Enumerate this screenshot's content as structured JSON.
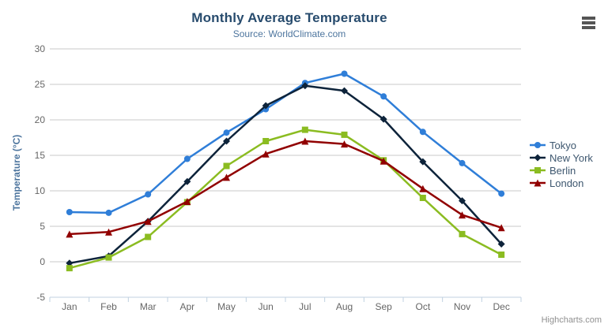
{
  "chart_data": {
    "type": "line",
    "title": "Monthly Average Temperature",
    "subtitle": "Source: WorldClimate.com",
    "categories": [
      "Jan",
      "Feb",
      "Mar",
      "Apr",
      "May",
      "Jun",
      "Jul",
      "Aug",
      "Sep",
      "Oct",
      "Nov",
      "Dec"
    ],
    "series": [
      {
        "name": "Tokyo",
        "color": "#2f7ed8",
        "marker": "circle",
        "values": [
          7.0,
          6.9,
          9.5,
          14.5,
          18.2,
          21.5,
          25.2,
          26.5,
          23.3,
          18.3,
          13.9,
          9.6
        ]
      },
      {
        "name": "New York",
        "color": "#0d233a",
        "marker": "diamond",
        "values": [
          -0.2,
          0.8,
          5.7,
          11.3,
          17.0,
          22.0,
          24.8,
          24.1,
          20.1,
          14.1,
          8.6,
          2.5
        ]
      },
      {
        "name": "Berlin",
        "color": "#8bbc21",
        "marker": "square",
        "values": [
          -0.9,
          0.6,
          3.5,
          8.4,
          13.5,
          17.0,
          18.6,
          17.9,
          14.3,
          9.0,
          3.9,
          1.0
        ]
      },
      {
        "name": "London",
        "color": "#910000",
        "marker": "triangle",
        "values": [
          3.9,
          4.2,
          5.7,
          8.5,
          11.9,
          15.2,
          17.0,
          16.6,
          14.2,
          10.3,
          6.6,
          4.8
        ]
      }
    ],
    "xlabel": "",
    "ylabel": "Temperature (°C)",
    "ylim": [
      -5,
      30
    ],
    "yticks": [
      -5,
      0,
      5,
      10,
      15,
      20,
      25,
      30
    ],
    "grid": true,
    "legend_position": "right",
    "colors": {
      "grid_line": "#C9C9C9",
      "x_axis_line": "#C0D0E0",
      "tick_label": "#666666",
      "title": "#274b6d",
      "subtitle": "#4d759e",
      "axis_title": "#4d759e",
      "legend_text": "#3E576F"
    }
  },
  "credit": "Highcharts.com"
}
